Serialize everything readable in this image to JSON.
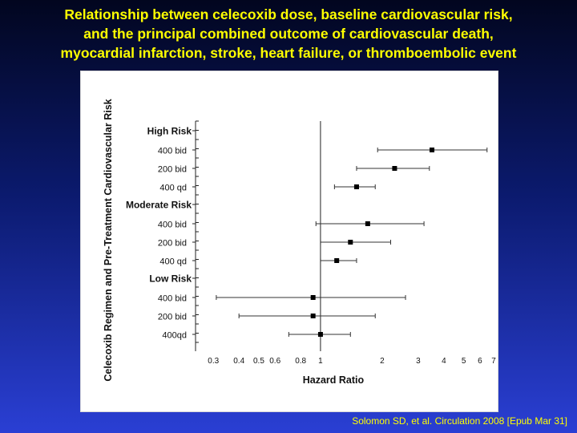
{
  "slide": {
    "title_lines": [
      "Relationship between celecoxib dose, baseline cardiovascular risk,",
      "and the principal combined outcome of cardiovascular death,",
      "myocardial infarction, stroke, heart failure, or thromboembolic event"
    ],
    "citation": "Solomon SD, et al. Circulation 2008 [Epub Mar 31]"
  },
  "chart_data": {
    "type": "forest",
    "xlabel": "Hazard Ratio",
    "ylabel": "Celecoxib Regimen and Pre-Treatment Cardiovascular Risk",
    "x_scale": "log",
    "xlim": [
      0.25,
      7
    ],
    "x_ticks": [
      0.3,
      0.4,
      0.5,
      0.6,
      0.8,
      1,
      2,
      3,
      4,
      5,
      6,
      7
    ],
    "x_tick_labels": [
      "0.3",
      "0.4",
      "0.5",
      "0.6",
      "0.8",
      "1",
      "2",
      "3",
      "4",
      "5",
      "6",
      "7"
    ],
    "reference_line": 1,
    "groups": [
      {
        "label": "High Risk",
        "rows": [
          {
            "label": "400 bid",
            "hr": 3.5,
            "lower": 1.9,
            "upper": 6.5
          },
          {
            "label": "200 bid",
            "hr": 2.3,
            "lower": 1.5,
            "upper": 3.4
          },
          {
            "label": "400 qd",
            "hr": 1.5,
            "lower": 1.17,
            "upper": 1.85
          }
        ]
      },
      {
        "label": "Moderate Risk",
        "rows": [
          {
            "label": "400 bid",
            "hr": 1.7,
            "lower": 0.95,
            "upper": 3.2
          },
          {
            "label": "200 bid",
            "hr": 1.4,
            "lower": 1.0,
            "upper": 2.2
          },
          {
            "label": "400 qd",
            "hr": 1.2,
            "lower": 1.0,
            "upper": 1.5
          }
        ]
      },
      {
        "label": "Low Risk",
        "rows": [
          {
            "label": "400 bid",
            "hr": 0.92,
            "lower": 0.31,
            "upper": 2.6
          },
          {
            "label": "200 bid",
            "hr": 0.92,
            "lower": 0.4,
            "upper": 1.85
          },
          {
            "label": "400qd",
            "hr": 1.0,
            "lower": 0.7,
            "upper": 1.4
          }
        ]
      }
    ]
  }
}
